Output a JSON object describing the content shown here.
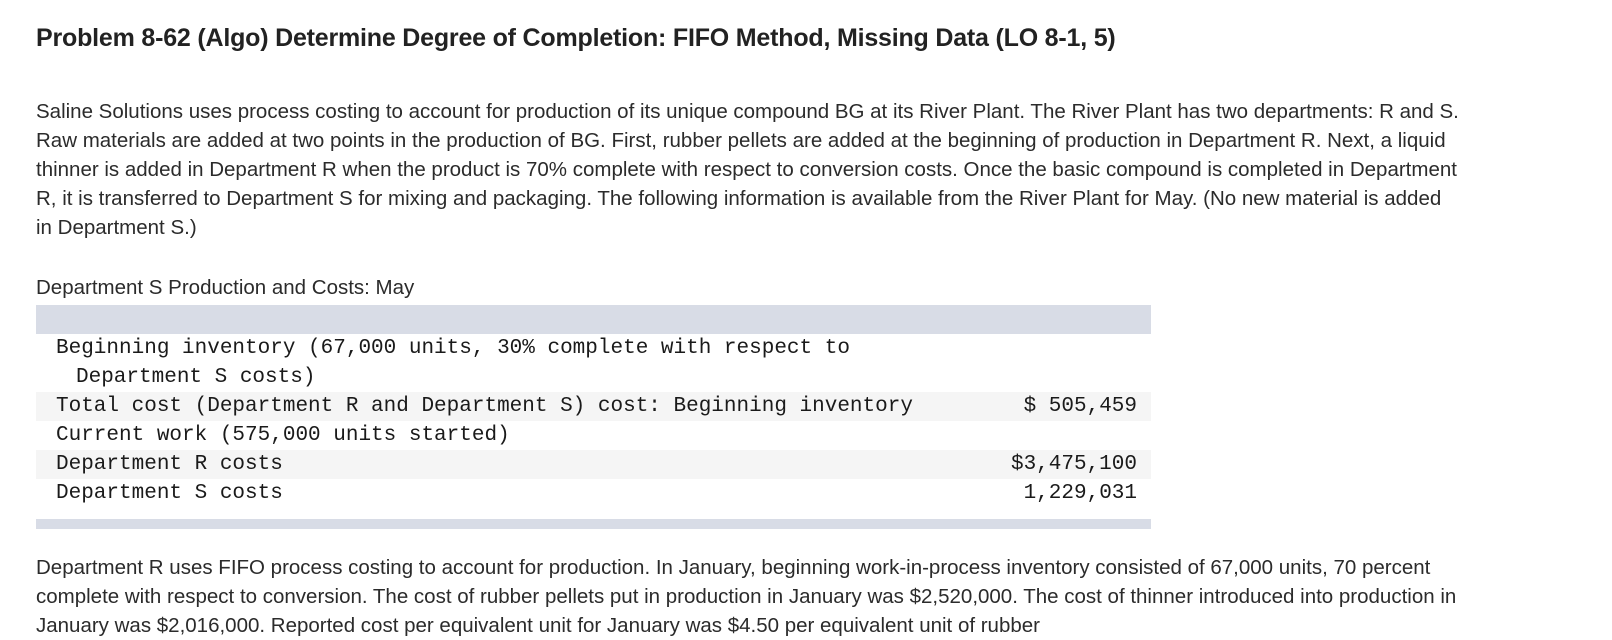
{
  "title": "Problem 8-62 (Algo) Determine Degree of Completion: FIFO Method, Missing Data (LO 8-1, 5)",
  "intro_paragraph": "Saline Solutions uses process costing to account for production of its unique compound BG at its River Plant. The River Plant has two departments: R and S. Raw materials are added at two points in the production of BG. First, rubber pellets are added at the beginning of production in Department R. Next, a liquid thinner is added in Department R when the product is 70% complete with respect to conversion costs. Once the basic compound is completed in Department R, it is transferred to Department S for mixing and packaging. The following information is available from the River Plant for May. (No new material is added in Department S.)",
  "table_caption": "Department S Production and Costs: May",
  "table": {
    "rows": [
      {
        "line1": "Beginning inventory (67,000 units, 30% complete with respect to",
        "line2": "Department S costs)",
        "amount": ""
      },
      {
        "label": "Total cost (Department R and Department S) cost: Beginning inventory",
        "amount": "$  505,459"
      },
      {
        "label": "Current work (575,000 units started)",
        "amount": ""
      },
      {
        "label": "Department R costs",
        "amount": "$3,475,100"
      },
      {
        "label": "Department S costs",
        "amount": "1,229,031"
      }
    ]
  },
  "bottom_paragraph": "Department R uses FIFO process costing to account for production. In January, beginning work-in-process inventory consisted of 67,000 units, 70 percent complete with respect to conversion. The cost of rubber pellets put in production in January was $2,520,000. The cost of thinner introduced into production in January was $2,016,000. Reported cost per equivalent unit for January was $4.50 per equivalent unit of rubber"
}
